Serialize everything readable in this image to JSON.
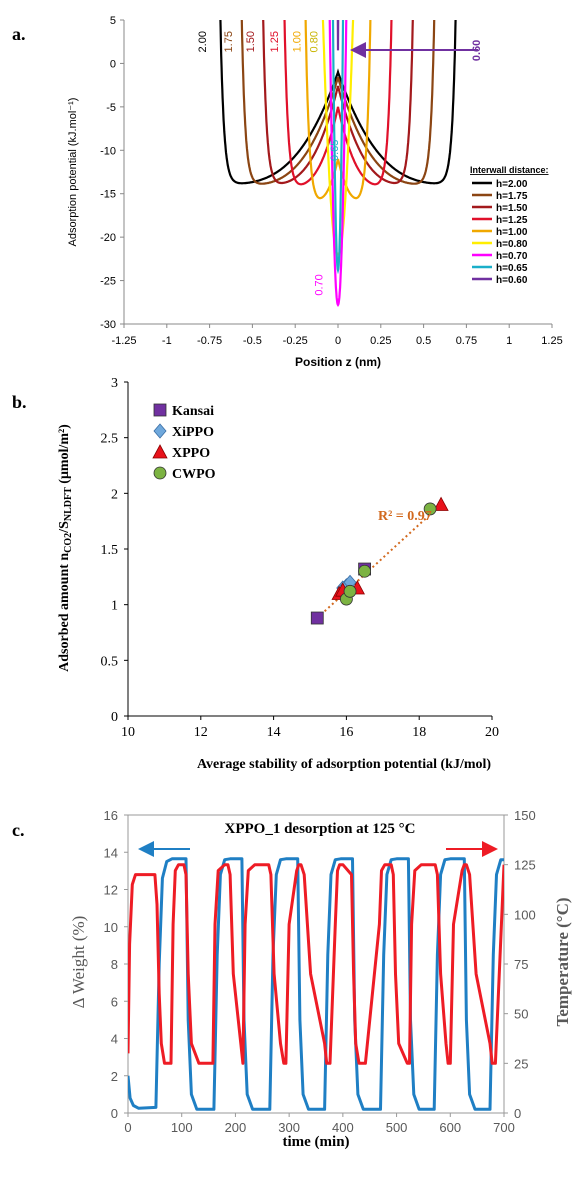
{
  "panels": {
    "a_label": "a.",
    "b_label": "b.",
    "c_label": "c."
  },
  "chart_data": [
    {
      "type": "line",
      "xlabel": "Position z (nm)",
      "ylabel": "Adsorption potential (kJ.mol⁻¹)",
      "xlim": [
        -1.25,
        1.25
      ],
      "ylim": [
        -30,
        5
      ],
      "xticks": [
        "-1.25",
        "-1",
        "-0.75",
        "-0.5",
        "-0.25",
        "0",
        "0.25",
        "0.5",
        "0.75",
        "1",
        "1.25"
      ],
      "yticks": [
        "5",
        "0",
        "-5",
        "-10",
        "-15",
        "-20",
        "-25",
        "-30"
      ],
      "grid": false,
      "legend_title": "Interwall distance:",
      "legend_position": "bottom-right",
      "series": [
        {
          "name": "h=2.00",
          "label": "2.00",
          "color": "#000000",
          "h": 2.0,
          "wall": 0.68,
          "center": -1.0,
          "min": -13.9
        },
        {
          "name": "h=1.75",
          "label": "1.75",
          "color": "#8B4513",
          "h": 1.75,
          "wall": 0.555,
          "center": -1.6,
          "min": -14.0
        },
        {
          "name": "h=1.50",
          "label": "1.50",
          "color": "#A3191C",
          "h": 1.5,
          "wall": 0.43,
          "center": -2.6,
          "min": -14.0
        },
        {
          "name": "h=1.25",
          "label": "1.25",
          "color": "#E0102A",
          "h": 1.25,
          "wall": 0.305,
          "center": -5.0,
          "min": -14.3
        },
        {
          "name": "h=1.00",
          "label": "1.00",
          "color": "#F0A800",
          "h": 1.0,
          "wall": 0.18,
          "center": -11.0,
          "min": -16.2
        },
        {
          "name": "h=0.80",
          "label": "0.80",
          "color": "#FFEE00",
          "h": 0.8,
          "wall": 0.08,
          "center": -22.0,
          "min": -22.0
        },
        {
          "name": "h=0.70",
          "label": "0.70",
          "color": "#FF00FF",
          "h": 0.7,
          "wall": 0.03,
          "center": -27.8,
          "min": -27.8
        },
        {
          "name": "h=0.65",
          "label": "0.65",
          "color": "#1AAFC9",
          "h": 0.65,
          "wall": 0.005,
          "center": -23.8,
          "min": -23.8
        },
        {
          "name": "h=0.60",
          "label": "0.60",
          "color": "#7030A0",
          "h": 0.6,
          "wall": -0.02,
          "center": 1.5,
          "min": 1.5
        }
      ]
    },
    {
      "type": "scatter",
      "xlabel": "Average stability of adsorption potential (kJ/mol)",
      "ylabel": "Adsorbed amount n",
      "ylabel_sub1": "CO2",
      "ylabel_mid": "/S",
      "ylabel_sub2": "NLDFT",
      "ylabel_unit": " (μmol/m²)",
      "xlim": [
        10,
        20
      ],
      "ylim": [
        0,
        3
      ],
      "xticks": [
        "10",
        "12",
        "14",
        "16",
        "18",
        "20"
      ],
      "yticks": [
        "0",
        "0.5",
        "1",
        "1.5",
        "2",
        "2.5",
        "3"
      ],
      "annotation": "R² = 0.97",
      "trendline": {
        "x": [
          15.2,
          18.6
        ],
        "y": [
          0.88,
          1.9
        ]
      },
      "legend_position": "top-left",
      "series": [
        {
          "name": "Kansai",
          "marker": "square",
          "color": "#7030A0",
          "points": [
            [
              15.2,
              0.88
            ],
            [
              16.5,
              1.32
            ]
          ]
        },
        {
          "name": "XiPPO",
          "marker": "diamond",
          "color": "#6FA8DC",
          "points": [
            [
              15.9,
              1.15
            ],
            [
              16.0,
              1.17
            ],
            [
              16.1,
              1.2
            ]
          ]
        },
        {
          "name": "XPPO",
          "marker": "triangle",
          "color": "#E8121B",
          "points": [
            [
              15.8,
              1.1
            ],
            [
              15.9,
              1.13
            ],
            [
              16.3,
              1.15
            ],
            [
              18.6,
              1.9
            ]
          ]
        },
        {
          "name": "CWPO",
          "marker": "circle",
          "color": "#7CB342",
          "points": [
            [
              16.0,
              1.05
            ],
            [
              16.1,
              1.12
            ],
            [
              16.5,
              1.3
            ],
            [
              18.3,
              1.86
            ]
          ]
        }
      ]
    },
    {
      "type": "line",
      "title": "XPPO_1 desorption at 125 °C",
      "xlabel": "time (min)",
      "ylabel": "Δ Weight (%)",
      "y2label": "Temperature (°C)",
      "xlim": [
        0,
        700
      ],
      "ylim": [
        0,
        16
      ],
      "y2lim": [
        0,
        150
      ],
      "xticks": [
        "0",
        "100",
        "200",
        "300",
        "400",
        "500",
        "600",
        "700"
      ],
      "yticks": [
        "0",
        "2",
        "4",
        "6",
        "8",
        "10",
        "12",
        "14",
        "16"
      ],
      "y2ticks": [
        "0",
        "25",
        "50",
        "75",
        "100",
        "125",
        "150"
      ],
      "series": [
        {
          "name": "Weight",
          "axis": "left",
          "color": "#1F7FC4",
          "x": [
            0,
            4,
            10,
            20,
            52,
            58,
            64,
            72,
            82,
            108,
            112,
            118,
            128,
            160,
            166,
            172,
            180,
            190,
            212,
            216,
            222,
            232,
            264,
            270,
            276,
            284,
            294,
            316,
            320,
            326,
            336,
            366,
            372,
            378,
            386,
            396,
            418,
            422,
            428,
            438,
            470,
            476,
            482,
            490,
            500,
            522,
            526,
            532,
            542,
            570,
            576,
            582,
            590,
            600,
            626,
            630,
            636,
            646,
            674,
            680,
            686,
            694,
            700
          ],
          "y": [
            2.0,
            0.8,
            0.4,
            0.25,
            0.3,
            8.0,
            12.6,
            13.5,
            13.65,
            13.65,
            5.0,
            1.0,
            0.2,
            0.2,
            8.5,
            12.8,
            13.6,
            13.65,
            13.65,
            5.0,
            1.0,
            0.2,
            0.2,
            8.5,
            12.8,
            13.6,
            13.65,
            13.65,
            5.0,
            1.0,
            0.2,
            0.2,
            8.5,
            12.8,
            13.6,
            13.65,
            13.65,
            5.0,
            1.0,
            0.2,
            0.2,
            8.5,
            12.8,
            13.6,
            13.65,
            13.65,
            5.0,
            1.0,
            0.2,
            0.2,
            8.5,
            12.8,
            13.6,
            13.65,
            13.65,
            5.0,
            1.0,
            0.2,
            0.2,
            8.5,
            12.8,
            13.6,
            13.6
          ]
        },
        {
          "name": "Temperature",
          "axis": "right",
          "color": "#EE1C25",
          "x": [
            0,
            3,
            8,
            14,
            20,
            50,
            54,
            58,
            62,
            68,
            80,
            84,
            88,
            94,
            104,
            108,
            112,
            118,
            132,
            158,
            162,
            168,
            180,
            186,
            190,
            196,
            210,
            214,
            218,
            224,
            236,
            262,
            266,
            272,
            284,
            290,
            294,
            300,
            314,
            318,
            322,
            328,
            340,
            366,
            370,
            376,
            386,
            390,
            394,
            400,
            416,
            420,
            424,
            430,
            442,
            468,
            472,
            478,
            490,
            494,
            498,
            504,
            520,
            524,
            528,
            534,
            546,
            572,
            576,
            582,
            592,
            596,
            600,
            606,
            622,
            626,
            630,
            636,
            648,
            674,
            678,
            684,
            700
          ],
          "y": [
            30,
            85,
            115,
            120,
            120,
            120,
            105,
            60,
            35,
            25,
            25,
            95,
            122,
            125,
            125,
            120,
            70,
            35,
            25,
            25,
            95,
            122,
            125,
            125,
            120,
            70,
            35,
            25,
            95,
            122,
            125,
            125,
            120,
            70,
            35,
            25,
            25,
            95,
            122,
            125,
            125,
            120,
            70,
            35,
            25,
            25,
            95,
            122,
            125,
            125,
            120,
            70,
            35,
            25,
            25,
            95,
            122,
            125,
            125,
            120,
            70,
            35,
            25,
            25,
            95,
            122,
            125,
            125,
            120,
            70,
            35,
            25,
            25,
            95,
            122,
            125,
            125,
            120,
            70,
            35,
            25,
            25,
            125
          ]
        }
      ]
    }
  ]
}
